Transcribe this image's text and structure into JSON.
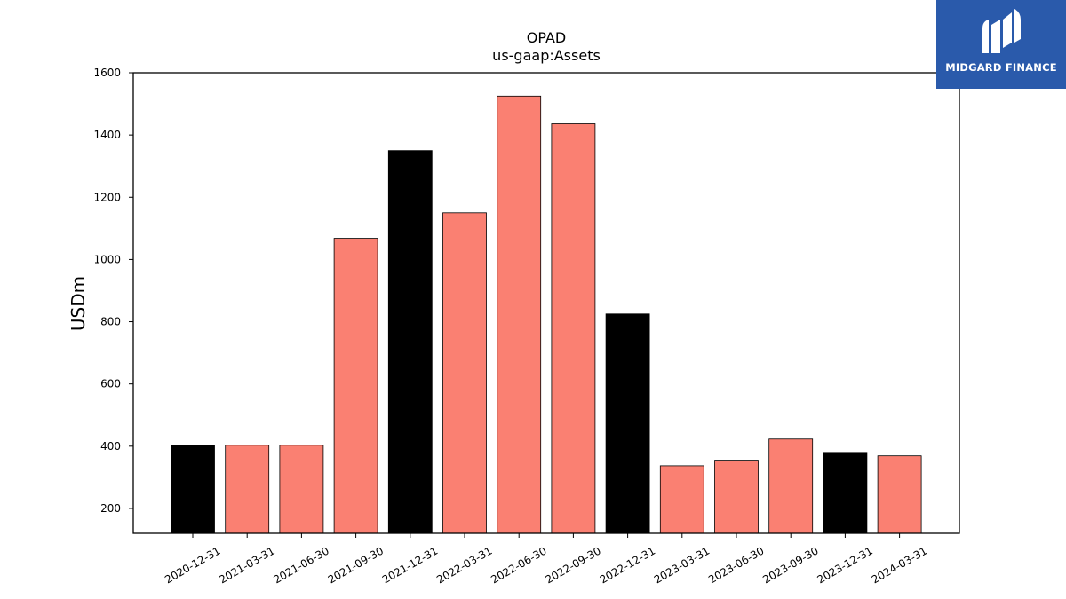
{
  "chart_data": {
    "type": "bar",
    "title": "OPAD",
    "subtitle": "us-gaap:Assets",
    "ylabel": "USDm",
    "xlabel": "",
    "ylim": [
      120,
      1600
    ],
    "yticks": [
      200,
      400,
      600,
      800,
      1000,
      1200,
      1400,
      1600
    ],
    "grid": false,
    "categories": [
      "2020-12-31",
      "2021-03-31",
      "2021-06-30",
      "2021-09-30",
      "2021-12-31",
      "2022-03-31",
      "2022-06-30",
      "2022-09-30",
      "2022-12-31",
      "2023-03-31",
      "2023-06-30",
      "2023-09-30",
      "2023-12-31",
      "2024-03-31"
    ],
    "values": [
      403,
      403,
      403,
      1068,
      1350,
      1150,
      1525,
      1436,
      825,
      337,
      355,
      423,
      380,
      369
    ],
    "bar_colors": [
      "#000000",
      "#fa8072",
      "#fa8072",
      "#fa8072",
      "#000000",
      "#fa8072",
      "#fa8072",
      "#fa8072",
      "#000000",
      "#fa8072",
      "#fa8072",
      "#fa8072",
      "#000000",
      "#fa8072"
    ]
  },
  "logo": {
    "text": "MIDGARD FINANCE",
    "background": "#2a5aab"
  }
}
